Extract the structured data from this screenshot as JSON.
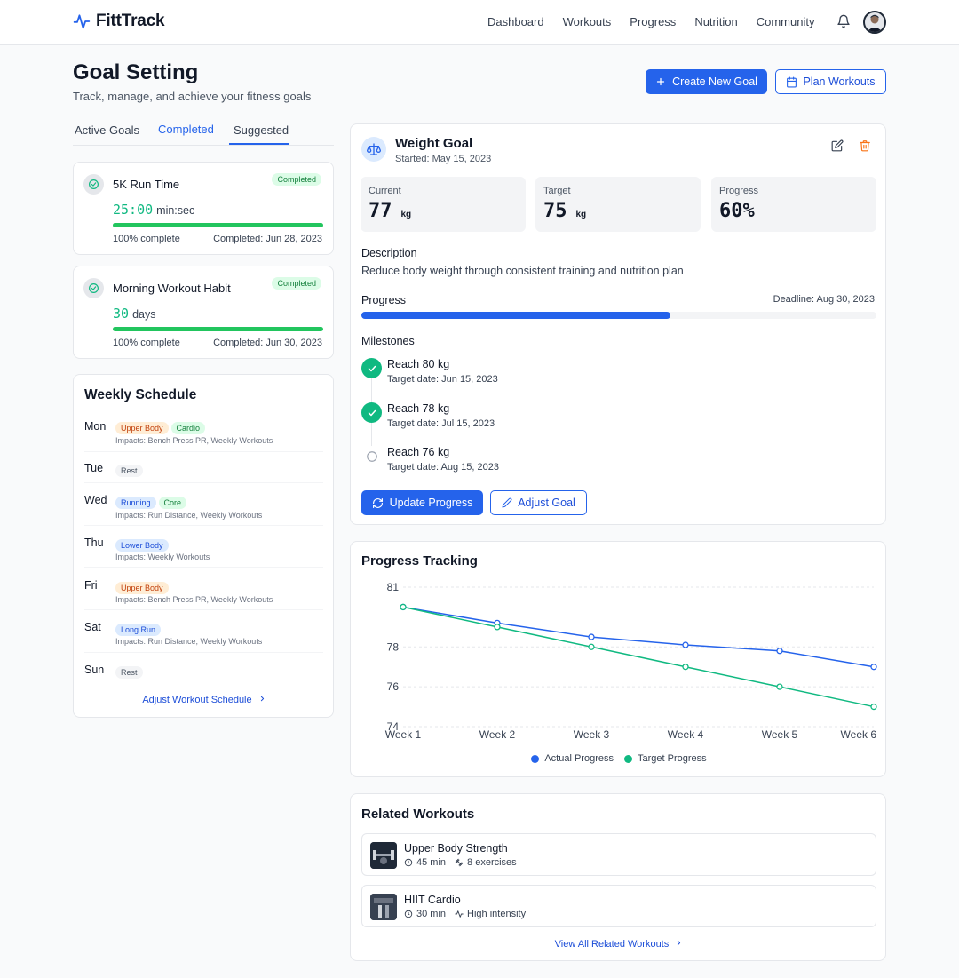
{
  "app": {
    "name": "FittTrack"
  },
  "nav": {
    "items": [
      "Dashboard",
      "Workouts",
      "Progress",
      "Nutrition",
      "Community"
    ]
  },
  "page": {
    "title": "Goal Setting",
    "subtitle": "Track, manage, and achieve your fitness goals",
    "create_label": "Create New Goal",
    "plan_label": "Plan Workouts"
  },
  "tabs": [
    "Active Goals",
    "Completed",
    "Suggested"
  ],
  "completed_goals": [
    {
      "title": "5K Run Time",
      "badge": "Completed",
      "value": "25:00",
      "unit": "min:sec",
      "percent": "100% complete",
      "completed": "Completed: Jun 28, 2023"
    },
    {
      "title": "Morning Workout Habit",
      "badge": "Completed",
      "value": "30",
      "unit": "days",
      "percent": "100% complete",
      "completed": "Completed: Jun 30, 2023"
    }
  ],
  "schedule": {
    "title": "Weekly Schedule",
    "days": [
      {
        "day": "Mon",
        "tags": [
          "Upper Body",
          "Cardio"
        ],
        "impacts": "Impacts: Bench Press PR, Weekly Workouts"
      },
      {
        "day": "Tue",
        "tags": [
          "Rest"
        ],
        "impacts": ""
      },
      {
        "day": "Wed",
        "tags": [
          "Running",
          "Core"
        ],
        "impacts": "Impacts: Run Distance, Weekly Workouts"
      },
      {
        "day": "Thu",
        "tags": [
          "Lower Body"
        ],
        "impacts": "Impacts: Weekly Workouts"
      },
      {
        "day": "Fri",
        "tags": [
          "Upper Body"
        ],
        "impacts": "Impacts: Bench Press PR, Weekly Workouts"
      },
      {
        "day": "Sat",
        "tags": [
          "Long Run"
        ],
        "impacts": "Impacts: Run Distance, Weekly Workouts"
      },
      {
        "day": "Sun",
        "tags": [
          "Rest"
        ],
        "impacts": ""
      }
    ],
    "link": "Adjust Workout Schedule"
  },
  "goal": {
    "title": "Weight Goal",
    "started": "Started: May 15, 2023",
    "stats": [
      {
        "label": "Current",
        "value": "77",
        "unit": "kg"
      },
      {
        "label": "Target",
        "value": "75",
        "unit": "kg"
      },
      {
        "label": "Progress",
        "value": "60%",
        "unit": ""
      }
    ],
    "description_label": "Description",
    "description": "Reduce body weight through consistent training and nutrition plan",
    "progress_label": "Progress",
    "deadline": "Deadline: Aug 30, 2023",
    "progress_fraction": 0.6,
    "milestones_label": "Milestones",
    "milestones": [
      {
        "title": "Reach 80 kg",
        "date": "Target date: Jun 15, 2023",
        "done": true
      },
      {
        "title": "Reach 78 kg",
        "date": "Target date: Jul 15, 2023",
        "done": true
      },
      {
        "title": "Reach 76 kg",
        "date": "Target date: Aug 15, 2023",
        "done": false
      }
    ],
    "update_label": "Update Progress",
    "adjust_label": "Adjust Goal"
  },
  "tracking": {
    "title": "Progress Tracking"
  },
  "chart_data": {
    "type": "line",
    "title": "Progress Tracking",
    "x": [
      "Week 1",
      "Week 2",
      "Week 3",
      "Week 4",
      "Week 5",
      "Week 6"
    ],
    "yticks": [
      81,
      78,
      76,
      74
    ],
    "ylim": [
      74,
      81
    ],
    "series": [
      {
        "name": "Actual Progress",
        "color": "#2563eb",
        "values": [
          80,
          79.2,
          78.5,
          78.1,
          77.8,
          77
        ]
      },
      {
        "name": "Target Progress",
        "color": "#10b981",
        "values": [
          80,
          79,
          78,
          77,
          76,
          75
        ]
      }
    ],
    "grid": true,
    "legend": "bottom"
  },
  "related": {
    "title": "Related Workouts",
    "items": [
      {
        "name": "Upper Body Strength",
        "time": "45 min",
        "detail": "8 exercises"
      },
      {
        "name": "HIIT Cardio",
        "time": "30 min",
        "detail": "High intensity"
      }
    ],
    "link": "View All Related Workouts"
  },
  "colors": {
    "accent": "#2563eb",
    "success": "#10b981",
    "warning": "#f97316"
  }
}
